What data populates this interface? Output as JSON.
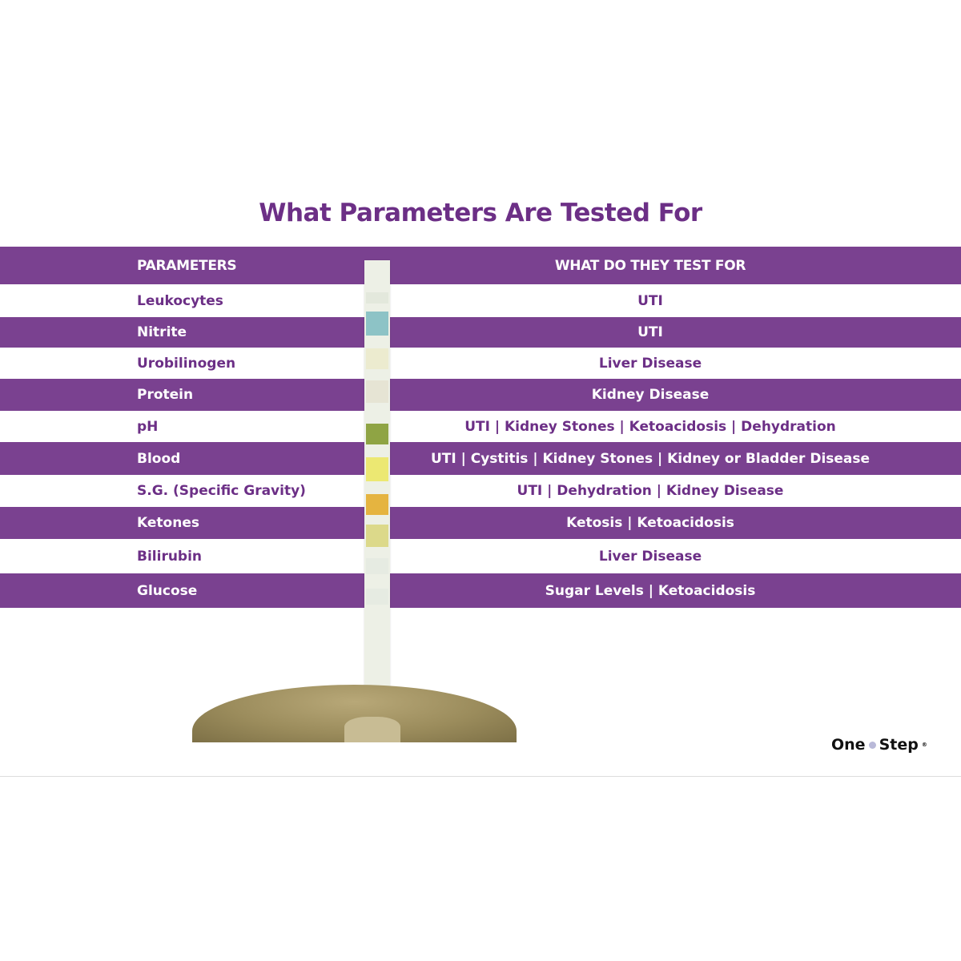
{
  "title": "What Parameters Are Tested For",
  "table": {
    "headers": {
      "parameters": "PARAMETERS",
      "tests": "WHAT DO THEY TEST FOR"
    },
    "rows": [
      {
        "parameter": "Leukocytes",
        "tests_for": "UTI"
      },
      {
        "parameter": "Nitrite",
        "tests_for": "UTI"
      },
      {
        "parameter": "Urobilinogen",
        "tests_for": "Liver Disease"
      },
      {
        "parameter": "Protein",
        "tests_for": "Kidney Disease"
      },
      {
        "parameter": "pH",
        "tests_for": "UTI | Kidney Stones | Ketoacidosis | Dehydration"
      },
      {
        "parameter": "Blood",
        "tests_for": "UTI | Cystitis | Kidney Stones | Kidney or Bladder Disease"
      },
      {
        "parameter": "S.G. (Specific Gravity)",
        "tests_for": "UTI | Dehydration | Kidney Disease"
      },
      {
        "parameter": "Ketones",
        "tests_for": "Ketosis | Ketoacidosis"
      },
      {
        "parameter": "Bilirubin",
        "tests_for": "Liver Disease"
      },
      {
        "parameter": "Glucose",
        "tests_for": "Sugar Levels | Ketoacidosis"
      }
    ]
  },
  "strip_pad_colors": [
    "#e3e8dc",
    "#8dc3c6",
    "#ecebcf",
    "#e6e4d4",
    "#8fa444",
    "#ece872",
    "#e5b440",
    "#dcd98a",
    "#e6ebe2",
    "#e6ebe2"
  ],
  "colors": {
    "brand_purple": "#7a4190",
    "title_purple": "#6c2f86"
  },
  "logo": {
    "text_left": "One",
    "text_right": "Step",
    "mark": "®"
  }
}
